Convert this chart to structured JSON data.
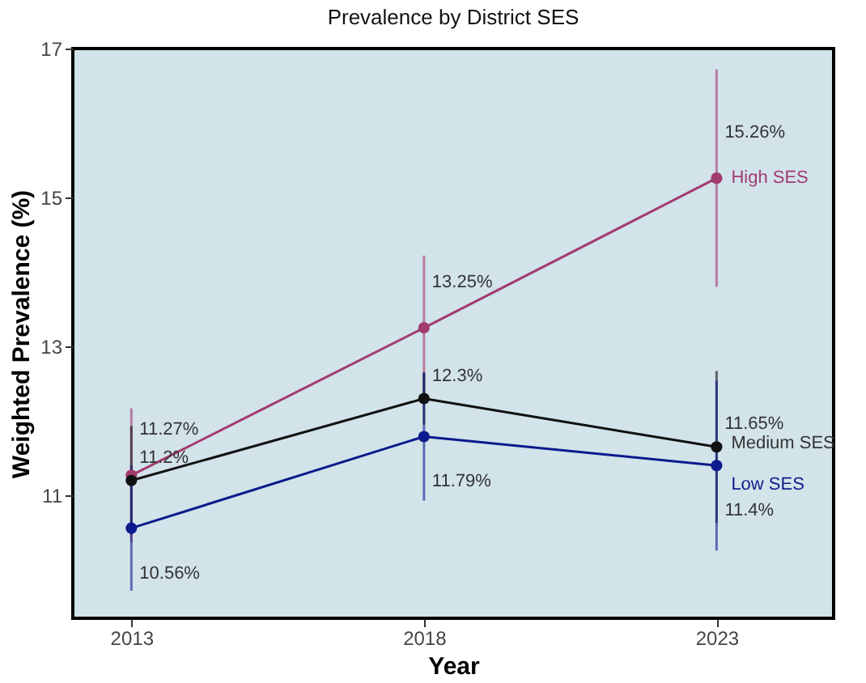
{
  "chart_data": {
    "type": "line",
    "title": "Prevalence by District SES",
    "xlabel": "Year",
    "ylabel": "Weighted Prevalence (%)",
    "x": [
      2013,
      2018,
      2023
    ],
    "xlim": [
      2012,
      2025
    ],
    "xticks": [
      2013,
      2018,
      2023
    ],
    "ylim": [
      9.35,
      17
    ],
    "yticks": [
      11,
      13,
      15,
      17
    ],
    "grid": false,
    "legend": false,
    "marker": "circle",
    "line_style": "solid",
    "series": [
      {
        "name": "High SES",
        "color": "#a23b6e",
        "values": [
          11.27,
          13.25,
          15.26
        ],
        "errors": [
          [
            10.37,
            12.17
          ],
          [
            12.28,
            14.22
          ],
          [
            13.8,
            16.72
          ]
        ],
        "value_labels": [
          "11.27%",
          "13.25%",
          "15.26%"
        ]
      },
      {
        "name": "Medium SES",
        "color": "#111111",
        "values": [
          11.2,
          12.3,
          11.65
        ],
        "errors": [
          [
            10.47,
            11.93
          ],
          [
            11.95,
            12.65
          ],
          [
            10.63,
            12.67
          ]
        ],
        "value_labels": [
          "11.2%",
          "12.3%",
          "11.65%"
        ]
      },
      {
        "name": "Low SES",
        "color": "#0b1a8c",
        "values": [
          10.56,
          11.79,
          11.4
        ],
        "errors": [
          [
            9.72,
            11.4
          ],
          [
            10.93,
            12.65
          ],
          [
            10.26,
            12.54
          ]
        ],
        "value_labels": [
          "10.56%",
          "11.79%",
          "11.4%"
        ]
      }
    ]
  }
}
